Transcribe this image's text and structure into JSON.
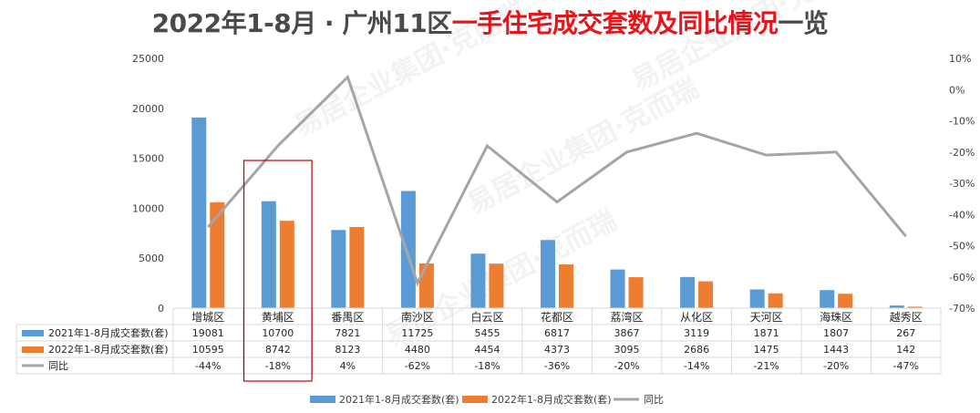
{
  "title": {
    "part1": "2022年1-8月 · 广州11区",
    "part2": "一手住宅成交套数及同比情况",
    "part3": "一览"
  },
  "watermark": "易居企业集团·克而瑞",
  "colors": {
    "series2021": "#5b9bd5",
    "series2022": "#ed7d31",
    "yoy": "#a5a5a5",
    "highlight_box": "#c00000",
    "title_accent": "#e8161b"
  },
  "highlight_category": "黄埔区",
  "chart_data": {
    "type": "bar",
    "categories": [
      "增城区",
      "黄埔区",
      "番禺区",
      "南沙区",
      "白云区",
      "花都区",
      "荔湾区",
      "从化区",
      "天河区",
      "海珠区",
      "越秀区"
    ],
    "series": [
      {
        "name": "2021年1-8月成交套数(套)",
        "type": "bar",
        "axis": "left",
        "values": [
          19081,
          10700,
          7821,
          11725,
          5455,
          6817,
          3867,
          3119,
          1871,
          1807,
          267
        ]
      },
      {
        "name": "2022年1-8月成交套数(套)",
        "type": "bar",
        "axis": "left",
        "values": [
          10595,
          8742,
          8123,
          4480,
          4454,
          4373,
          3095,
          2686,
          1475,
          1443,
          142
        ]
      },
      {
        "name": "同比",
        "type": "line",
        "axis": "right",
        "values": [
          -44,
          -18,
          4,
          -62,
          -18,
          -36,
          -20,
          -14,
          -21,
          -20,
          -47
        ],
        "labels": [
          "-44%",
          "-18%",
          "4%",
          "-62%",
          "-18%",
          "-36%",
          "-20%",
          "-14%",
          "-21%",
          "-20%",
          "-47%"
        ]
      }
    ],
    "yleft": {
      "min": 0,
      "max": 25000,
      "ticks": [
        "0",
        "5000",
        "10000",
        "15000",
        "20000",
        "25000"
      ]
    },
    "yright": {
      "min": -70,
      "max": 10,
      "ticks": [
        "-70%",
        "-60%",
        "-50%",
        "-40%",
        "-30%",
        "-20%",
        "-10%",
        "0%",
        "10%"
      ]
    },
    "table_values": {
      "s2021": [
        "19081",
        "10700",
        "7821",
        "11725",
        "5455",
        "6817",
        "3867",
        "3119",
        "1871",
        "1807",
        "267"
      ],
      "s2022": [
        "10595",
        "8742",
        "8123",
        "4480",
        "4454",
        "4373",
        "3095",
        "2686",
        "1475",
        "1443",
        "142"
      ]
    },
    "legend": {
      "position": "bottom",
      "items": [
        "2021年1-8月成交套数(套)",
        "2022年1-8月成交套数(套)",
        "同比"
      ]
    },
    "grid": false
  }
}
